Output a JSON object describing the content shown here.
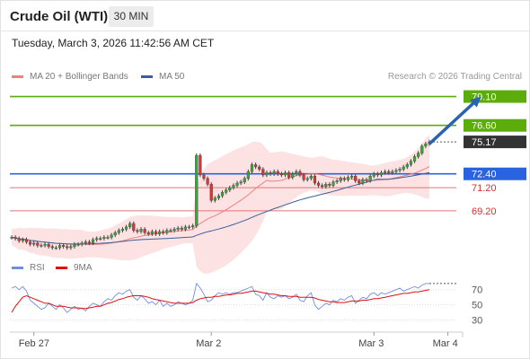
{
  "header": {
    "title": "Crude Oil (WTI)",
    "interval": "30 MIN",
    "datetime": "Tuesday, March 3, 2026 11:42:56 AM CET"
  },
  "credit": "Research © 2026 Trading Central",
  "colors": {
    "resistance": "#5cac0c",
    "pivot": "#2a63e0",
    "support": "#e57373",
    "support_text": "#d32f2f",
    "last_price_bg": "#333333",
    "price_series": "#444444",
    "ma20": "#f08080",
    "ma50": "#3a5f9e",
    "bollinger_fill": "#fbd5d5",
    "arrow": "#2a63b0",
    "rsi": "#6f8fe0",
    "rsi_ma": "#e01010"
  },
  "chart_data": [
    {
      "type": "candlestick",
      "name": "price",
      "legend": [
        {
          "label": "MA 20 + Bollinger Bands",
          "color": "#f08080"
        },
        {
          "label": "MA 50",
          "color": "#3a5f9e"
        }
      ],
      "ylim": [
        66.0,
        80.0
      ],
      "levels": [
        {
          "value": 79.1,
          "label": "79.10",
          "role": "resistance"
        },
        {
          "value": 76.6,
          "label": "76.60",
          "role": "resistance"
        },
        {
          "value": 75.17,
          "label": "75.17",
          "role": "last"
        },
        {
          "value": 72.4,
          "label": "72.40",
          "role": "pivot"
        },
        {
          "value": 71.2,
          "label": "71.20",
          "role": "support"
        },
        {
          "value": 69.2,
          "label": "69.20",
          "role": "support"
        }
      ],
      "x_ticks": [
        {
          "label": "Feb 27",
          "index": 6
        },
        {
          "label": "Mar 2",
          "index": 54
        },
        {
          "label": "Mar 3",
          "index": 98
        },
        {
          "label": "Mar 4",
          "index": 118
        }
      ],
      "close": [
        66.9,
        66.8,
        66.6,
        66.7,
        66.5,
        66.3,
        66.4,
        66.2,
        66.2,
        66.3,
        66.1,
        66.0,
        66.0,
        66.2,
        66.1,
        66.0,
        66.1,
        66.3,
        66.3,
        66.4,
        66.5,
        66.4,
        66.7,
        66.8,
        66.8,
        66.9,
        66.9,
        67.1,
        67.3,
        67.5,
        67.6,
        67.8,
        68.1,
        67.5,
        67.4,
        67.6,
        67.3,
        67.2,
        67.4,
        67.2,
        67.4,
        67.3,
        67.5,
        67.5,
        67.6,
        67.7,
        67.6,
        67.8,
        67.8,
        67.9,
        74.0,
        72.3,
        72.0,
        71.5,
        70.1,
        70.3,
        70.5,
        70.8,
        71.0,
        71.2,
        71.4,
        71.6,
        71.7,
        72.0,
        72.6,
        73.2,
        73.0,
        72.8,
        72.3,
        72.5,
        72.4,
        72.6,
        72.4,
        72.3,
        72.5,
        72.1,
        72.4,
        72.6,
        72.3,
        71.9,
        72.0,
        72.2,
        71.6,
        71.4,
        71.3,
        71.5,
        71.4,
        71.7,
        71.8,
        72.0,
        71.9,
        72.1,
        72.2,
        71.8,
        71.6,
        71.9,
        71.8,
        72.2,
        72.4,
        72.3,
        72.5,
        72.6,
        72.5,
        72.6,
        72.7,
        72.8,
        73.0,
        73.2,
        73.5,
        73.9,
        74.2,
        74.8,
        75.0,
        75.17
      ],
      "arrow": {
        "from": [
          113,
          75.0
        ],
        "to": [
          127,
          79.1
        ]
      }
    },
    {
      "type": "line",
      "name": "rsi",
      "legend": [
        {
          "label": "RSI",
          "color": "#6f8fe0"
        },
        {
          "label": "9MA",
          "color": "#e01010"
        }
      ],
      "ylim": [
        20,
        85
      ],
      "y_ticks": [
        70,
        50,
        30
      ],
      "rsi": [
        72,
        74,
        70,
        74,
        68,
        56,
        52,
        48,
        44,
        46,
        52,
        48,
        44,
        50,
        46,
        40,
        44,
        48,
        44,
        46,
        42,
        48,
        52,
        50,
        48,
        54,
        58,
        56,
        62,
        66,
        64,
        68,
        70,
        60,
        56,
        62,
        58,
        52,
        54,
        50,
        56,
        48,
        52,
        48,
        50,
        54,
        52,
        50,
        52,
        56,
        78,
        72,
        64,
        54,
        56,
        62,
        66,
        64,
        66,
        64,
        66,
        66,
        68,
        70,
        72,
        74,
        64,
        62,
        56,
        66,
        60,
        58,
        62,
        60,
        62,
        58,
        60,
        64,
        56,
        54,
        62,
        66,
        50,
        44,
        48,
        52,
        50,
        56,
        54,
        58,
        56,
        60,
        62,
        52,
        56,
        60,
        58,
        64,
        66,
        62,
        66,
        64,
        66,
        68,
        70,
        72,
        68,
        70,
        72,
        74,
        72,
        76,
        78,
        78
      ],
      "ma": [
        40,
        48,
        54,
        60,
        62,
        60,
        58,
        56,
        54,
        52,
        52,
        50,
        48,
        48,
        48,
        47,
        46,
        46,
        46,
        45,
        45,
        46,
        47,
        48,
        48,
        50,
        52,
        53,
        55,
        57,
        58,
        60,
        61,
        62,
        62,
        62,
        61,
        60,
        58,
        57,
        56,
        55,
        54,
        53,
        52,
        52,
        52,
        52,
        52,
        53,
        56,
        58,
        59,
        60,
        60,
        61,
        61,
        62,
        63,
        63,
        64,
        65,
        65,
        66,
        67,
        68,
        68,
        67,
        66,
        65,
        64,
        64,
        63,
        62,
        62,
        61,
        61,
        61,
        60,
        60,
        60,
        60,
        59,
        57,
        56,
        55,
        54,
        54,
        53,
        53,
        53,
        54,
        55,
        55,
        55,
        56,
        56,
        57,
        58,
        58,
        59,
        60,
        61,
        62,
        63,
        64,
        65,
        65,
        66,
        67,
        67,
        68,
        69,
        70
      ]
    }
  ]
}
